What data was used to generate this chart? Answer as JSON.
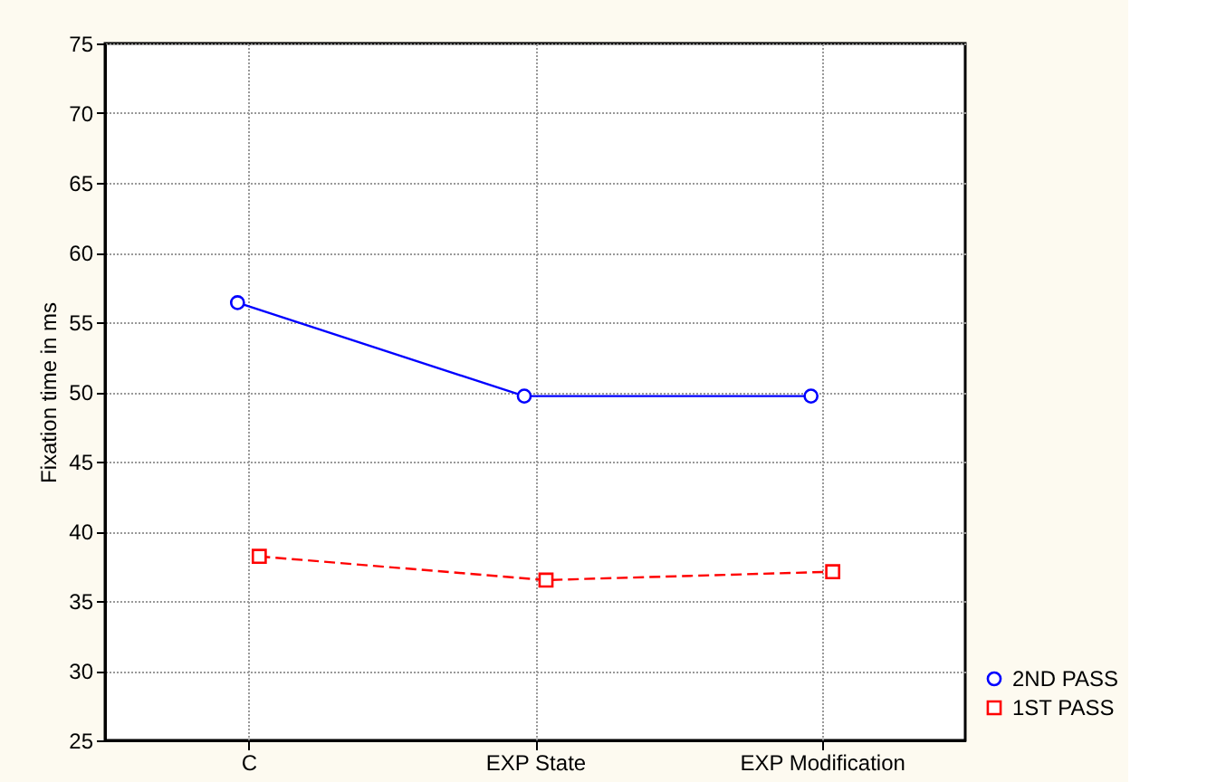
{
  "chart_data": {
    "type": "line",
    "ylabel": "Fixation time in ms",
    "categories": [
      "C",
      "EXP State",
      "EXP Modification"
    ],
    "series": [
      {
        "name": "2ND PASS",
        "color": "#0000ff",
        "values": [
          56.4,
          49.7,
          49.7
        ],
        "marker": "circle",
        "line_style": "solid"
      },
      {
        "name": "1ST PASS",
        "color": "#ff0000",
        "values": [
          38.2,
          36.5,
          37.1
        ],
        "marker": "square",
        "line_style": "dashed"
      }
    ],
    "ylim": [
      25,
      75
    ],
    "yticks": [
      25,
      30,
      35,
      40,
      45,
      50,
      55,
      60,
      65,
      70,
      75
    ],
    "grid": true,
    "legend": "bottom right"
  }
}
